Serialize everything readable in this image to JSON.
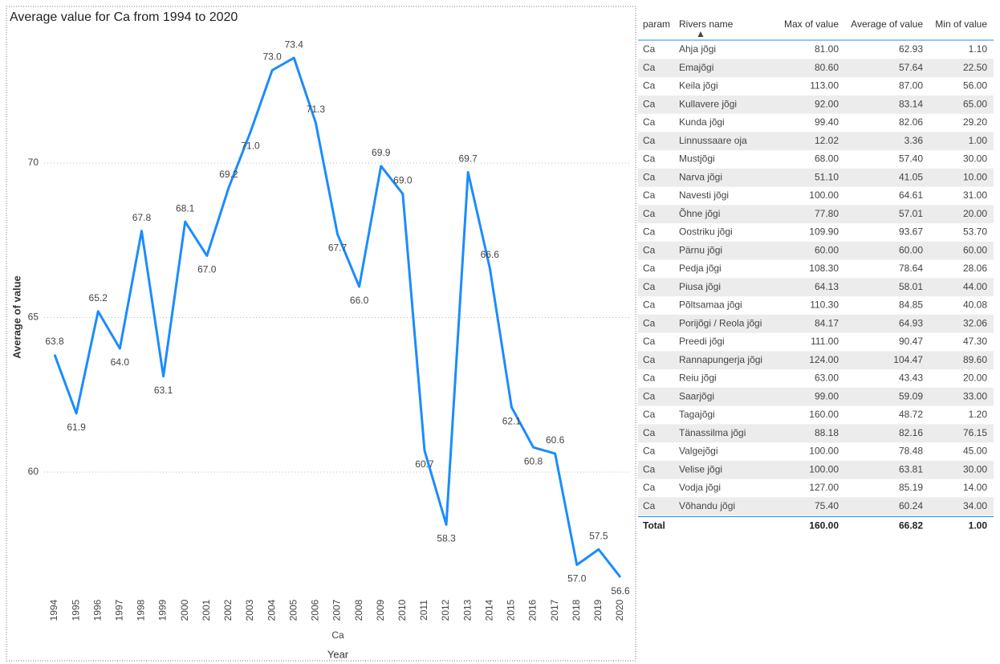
{
  "chart_data": {
    "type": "line",
    "title": "Average value for Ca from 1994 to 2020",
    "x_label": "Year",
    "x_sublabel": "Ca",
    "y_label": "Average of value",
    "categories": [
      "1994",
      "1995",
      "1996",
      "1997",
      "1998",
      "1999",
      "2000",
      "2001",
      "2002",
      "2003",
      "2004",
      "2005",
      "2006",
      "2007",
      "2008",
      "2009",
      "2010",
      "2011",
      "2012",
      "2013",
      "2014",
      "2015",
      "2016",
      "2017",
      "2018",
      "2019",
      "2020"
    ],
    "series": [
      {
        "name": "Ca",
        "color": "#1a8cff",
        "values": [
          63.8,
          61.9,
          65.2,
          64.0,
          67.8,
          63.1,
          68.1,
          67.0,
          69.2,
          71.0,
          73.0,
          73.4,
          71.3,
          67.7,
          66.0,
          69.9,
          69.0,
          60.7,
          58.3,
          69.7,
          66.6,
          62.1,
          60.8,
          60.6,
          57.0,
          57.5,
          56.6
        ],
        "value_labels": [
          "63.8",
          "61.9",
          "65.2",
          "64.0",
          "67.8",
          "63.1",
          "68.1",
          "67.0",
          "69.2",
          "71.0",
          "73.0",
          "73.4",
          "71.3",
          "67.7",
          "66.0",
          "69.9",
          "69.0",
          "60.7",
          "58.3",
          "69.7",
          "66.6",
          "62.1",
          "60.8",
          "60.6",
          "57.0",
          "57.5",
          "56.6"
        ]
      }
    ],
    "ylim": [
      56,
      74
    ],
    "yticks": [
      60,
      65,
      70
    ],
    "grid": true
  },
  "table": {
    "columns": [
      "param",
      "Rivers name",
      "Max of value",
      "Average of value",
      "Min of value"
    ],
    "rows": [
      [
        "Ca",
        "Ahja jõgi",
        "81.00",
        "62.93",
        "1.10"
      ],
      [
        "Ca",
        "Emajõgi",
        "80.60",
        "57.64",
        "22.50"
      ],
      [
        "Ca",
        "Keila jõgi",
        "113.00",
        "87.00",
        "56.00"
      ],
      [
        "Ca",
        "Kullavere jõgi",
        "92.00",
        "83.14",
        "65.00"
      ],
      [
        "Ca",
        "Kunda jõgi",
        "99.40",
        "82.06",
        "29.20"
      ],
      [
        "Ca",
        "Linnussaare oja",
        "12.02",
        "3.36",
        "1.00"
      ],
      [
        "Ca",
        "Mustjõgi",
        "68.00",
        "57.40",
        "30.00"
      ],
      [
        "Ca",
        "Narva jõgi",
        "51.10",
        "41.05",
        "10.00"
      ],
      [
        "Ca",
        "Navesti jõgi",
        "100.00",
        "64.61",
        "31.00"
      ],
      [
        "Ca",
        "Õhne jõgi",
        "77.80",
        "57.01",
        "20.00"
      ],
      [
        "Ca",
        "Oostriku jõgi",
        "109.90",
        "93.67",
        "53.70"
      ],
      [
        "Ca",
        "Pärnu jõgi",
        "60.00",
        "60.00",
        "60.00"
      ],
      [
        "Ca",
        "Pedja jõgi",
        "108.30",
        "78.64",
        "28.06"
      ],
      [
        "Ca",
        "Piusa jõgi",
        "64.13",
        "58.01",
        "44.00"
      ],
      [
        "Ca",
        "Põltsamaa jõgi",
        "110.30",
        "84.85",
        "40.08"
      ],
      [
        "Ca",
        "Porijõgi / Reola jõgi",
        "84.17",
        "64.93",
        "32.06"
      ],
      [
        "Ca",
        "Preedi jõgi",
        "111.00",
        "90.47",
        "47.30"
      ],
      [
        "Ca",
        "Rannapungerja jõgi",
        "124.00",
        "104.47",
        "89.60"
      ],
      [
        "Ca",
        "Reiu jõgi",
        "63.00",
        "43.43",
        "20.00"
      ],
      [
        "Ca",
        "Saarjõgi",
        "99.00",
        "59.09",
        "33.00"
      ],
      [
        "Ca",
        "Tagajõgi",
        "160.00",
        "48.72",
        "1.20"
      ],
      [
        "Ca",
        "Tänassilma jõgi",
        "88.18",
        "82.16",
        "76.15"
      ],
      [
        "Ca",
        "Valgejõgi",
        "100.00",
        "78.48",
        "45.00"
      ],
      [
        "Ca",
        "Velise jõgi",
        "100.00",
        "63.81",
        "30.00"
      ],
      [
        "Ca",
        "Vodja jõgi",
        "127.00",
        "85.19",
        "14.00"
      ],
      [
        "Ca",
        "Võhandu jõgi",
        "75.40",
        "60.24",
        "34.00"
      ]
    ],
    "total": {
      "label": "Total",
      "max": "160.00",
      "average": "66.82",
      "min": "1.00"
    }
  }
}
